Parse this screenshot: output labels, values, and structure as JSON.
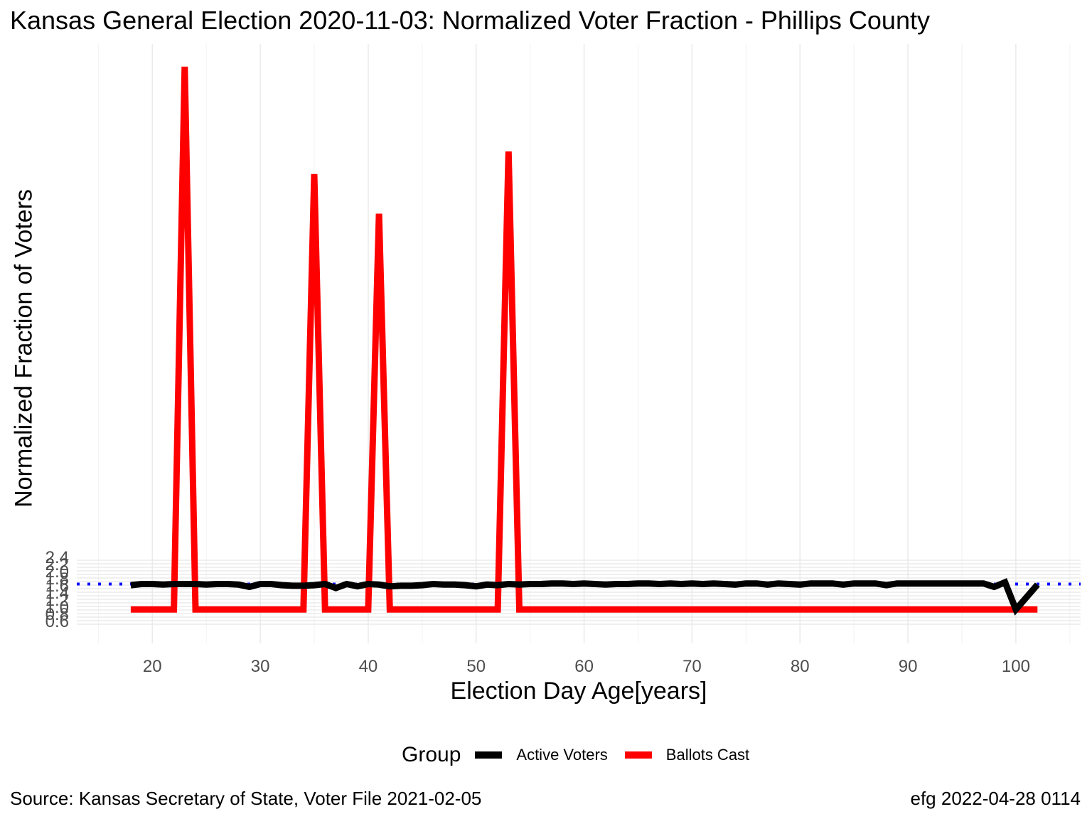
{
  "chart_data": {
    "type": "line",
    "title": "Kansas General Election 2020-11-03:  Normalized Voter Fraction - Phillips County",
    "xlabel": "Election Day Age[years]",
    "ylabel": "Normalized Fraction of Voters",
    "xlim": [
      13,
      106
    ],
    "ylim": [
      -0.06,
      1.0
    ],
    "x_ticks": [
      20,
      30,
      40,
      50,
      60,
      70,
      80,
      90,
      100
    ],
    "y_ticks_overlapping": [
      "0.6",
      "0.8",
      "1.0",
      "1.2",
      "1.4",
      "1.6",
      "1.8",
      "2.0",
      "2.2",
      "2.4"
    ],
    "reference_line": {
      "y": 0.045,
      "style": "dotted",
      "color": "#0000ff"
    },
    "legend": {
      "title": "Group",
      "position": "bottom"
    },
    "series": [
      {
        "name": "Active Voters",
        "color": "#000000",
        "x": [
          18,
          19,
          20,
          21,
          22,
          23,
          24,
          25,
          26,
          27,
          28,
          29,
          30,
          31,
          32,
          33,
          34,
          35,
          36,
          37,
          38,
          39,
          40,
          41,
          42,
          43,
          44,
          45,
          46,
          47,
          48,
          49,
          50,
          51,
          52,
          53,
          54,
          55,
          56,
          57,
          58,
          59,
          60,
          61,
          62,
          63,
          64,
          65,
          66,
          67,
          68,
          69,
          70,
          71,
          72,
          73,
          74,
          75,
          76,
          77,
          78,
          79,
          80,
          81,
          82,
          83,
          84,
          85,
          86,
          87,
          88,
          89,
          90,
          91,
          92,
          93,
          94,
          95,
          96,
          97,
          98,
          99,
          100,
          101,
          102
        ],
        "values": [
          0.043,
          0.045,
          0.045,
          0.044,
          0.045,
          0.045,
          0.045,
          0.044,
          0.045,
          0.045,
          0.044,
          0.04,
          0.045,
          0.045,
          0.043,
          0.042,
          0.042,
          0.043,
          0.045,
          0.038,
          0.045,
          0.041,
          0.045,
          0.044,
          0.041,
          0.042,
          0.042,
          0.043,
          0.045,
          0.044,
          0.044,
          0.043,
          0.041,
          0.044,
          0.043,
          0.045,
          0.044,
          0.045,
          0.045,
          0.046,
          0.046,
          0.045,
          0.046,
          0.045,
          0.044,
          0.045,
          0.045,
          0.046,
          0.046,
          0.045,
          0.046,
          0.045,
          0.046,
          0.045,
          0.046,
          0.045,
          0.044,
          0.046,
          0.046,
          0.044,
          0.046,
          0.045,
          0.044,
          0.046,
          0.046,
          0.046,
          0.044,
          0.046,
          0.046,
          0.046,
          0.043,
          0.046,
          0.046,
          0.046,
          0.046,
          0.046,
          0.046,
          0.046,
          0.046,
          0.046,
          0.04,
          0.048,
          0.0,
          0.022,
          0.044
        ]
      },
      {
        "name": "Ballots Cast",
        "color": "#ff0000",
        "x": [
          18,
          19,
          20,
          21,
          22,
          23,
          24,
          25,
          26,
          27,
          28,
          29,
          30,
          31,
          32,
          33,
          34,
          35,
          36,
          37,
          38,
          39,
          40,
          41,
          42,
          43,
          44,
          45,
          46,
          47,
          48,
          49,
          50,
          51,
          52,
          53,
          54,
          55,
          56,
          57,
          58,
          59,
          60,
          61,
          62,
          63,
          64,
          65,
          66,
          67,
          68,
          69,
          70,
          71,
          72,
          73,
          74,
          75,
          76,
          77,
          78,
          79,
          80,
          81,
          82,
          83,
          84,
          85,
          86,
          87,
          88,
          89,
          90,
          91,
          92,
          93,
          94,
          95,
          96,
          97,
          98,
          99,
          100,
          101,
          102
        ],
        "values": [
          0,
          0,
          0,
          0,
          0,
          0.96,
          0,
          0,
          0,
          0,
          0,
          0,
          0,
          0,
          0,
          0,
          0,
          0.77,
          0,
          0,
          0,
          0,
          0,
          0.7,
          0,
          0,
          0,
          0,
          0,
          0,
          0,
          0,
          0,
          0,
          0,
          0.81,
          0,
          0,
          0,
          0,
          0,
          0,
          0,
          0,
          0,
          0,
          0,
          0,
          0,
          0,
          0,
          0,
          0,
          0,
          0,
          0,
          0,
          0,
          0,
          0,
          0,
          0,
          0,
          0,
          0,
          0,
          0,
          0,
          0,
          0,
          0,
          0,
          0,
          0,
          0,
          0,
          0,
          0,
          0,
          0,
          0,
          0,
          0,
          0,
          0
        ]
      }
    ]
  },
  "caption": {
    "source": "Source:  Kansas Secretary of State, Voter File  2021-02-05",
    "stamp": "efg 2022-04-28 0114"
  }
}
